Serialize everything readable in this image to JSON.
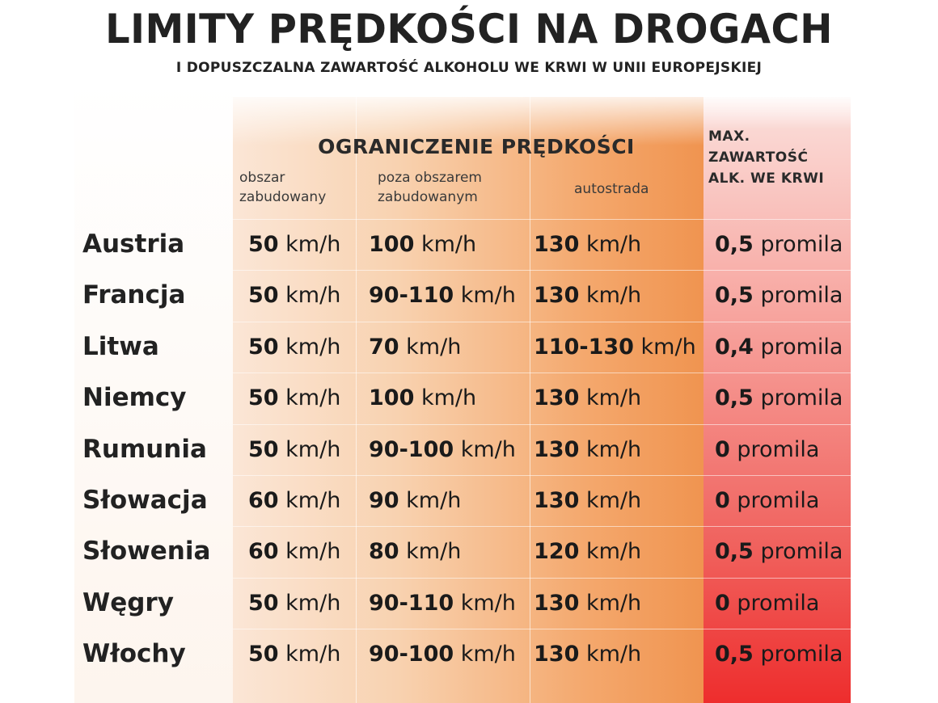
{
  "title": "LIMITY PRĘDKOŚCI NA DROGACH",
  "subtitle": "I DOPUSZCZALNA ZAWARTOŚĆ ALKOHOLU WE KRWI W UNII EUROPEJSKIEJ",
  "header": {
    "speed_group": "OGRANICZENIE PRĘDKOŚCI",
    "columns": {
      "urban": [
        "obszar",
        "zabudowany"
      ],
      "rural": [
        "poza obszarem",
        "zabudowanym"
      ],
      "motorway": "autostrada"
    },
    "alcohol": [
      "MAX.",
      "ZAWARTOŚĆ",
      "ALK. WE KRWI"
    ]
  },
  "rows": [
    {
      "country": "Austria",
      "urban": "50",
      "urban_unit": "km/h",
      "rural": "100",
      "rural_unit": "km/h",
      "motorway": "130",
      "motorway_unit": "km/h",
      "alcohol": "0,5",
      "alcohol_unit": "promila"
    },
    {
      "country": "Francja",
      "urban": "50",
      "urban_unit": "km/h",
      "rural": "90-110",
      "rural_unit": "km/h",
      "motorway": "130",
      "motorway_unit": "km/h",
      "alcohol": "0,5",
      "alcohol_unit": "promila"
    },
    {
      "country": "Litwa",
      "urban": "50",
      "urban_unit": "km/h",
      "rural": "70",
      "rural_unit": "km/h",
      "motorway": "110-130",
      "motorway_unit": "km/h",
      "alcohol": "0,4",
      "alcohol_unit": "promila"
    },
    {
      "country": "Niemcy",
      "urban": "50",
      "urban_unit": "km/h",
      "rural": "100",
      "rural_unit": "km/h",
      "motorway": "130",
      "motorway_unit": "km/h",
      "alcohol": "0,5",
      "alcohol_unit": "promila"
    },
    {
      "country": "Rumunia",
      "urban": "50",
      "urban_unit": "km/h",
      "rural": "90-100",
      "rural_unit": "km/h",
      "motorway": "130",
      "motorway_unit": "km/h",
      "alcohol": "0",
      "alcohol_unit": "promila"
    },
    {
      "country": "Słowacja",
      "urban": "60",
      "urban_unit": "km/h",
      "rural": "90",
      "rural_unit": "km/h",
      "motorway": "130",
      "motorway_unit": "km/h",
      "alcohol": "0",
      "alcohol_unit": "promila"
    },
    {
      "country": "Słowenia",
      "urban": "60",
      "urban_unit": "km/h",
      "rural": "80",
      "rural_unit": "km/h",
      "motorway": "120",
      "motorway_unit": "km/h",
      "alcohol": "0,5",
      "alcohol_unit": "promila"
    },
    {
      "country": "Węgry",
      "urban": "50",
      "urban_unit": "km/h",
      "rural": "90-110",
      "rural_unit": "km/h",
      "motorway": "130",
      "motorway_unit": "km/h",
      "alcohol": "0",
      "alcohol_unit": "promila"
    },
    {
      "country": "Włochy",
      "urban": "50",
      "urban_unit": "km/h",
      "rural": "90-100",
      "rural_unit": "km/h",
      "motorway": "130",
      "motorway_unit": "km/h",
      "alcohol": "0,5",
      "alcohol_unit": "promila"
    }
  ]
}
